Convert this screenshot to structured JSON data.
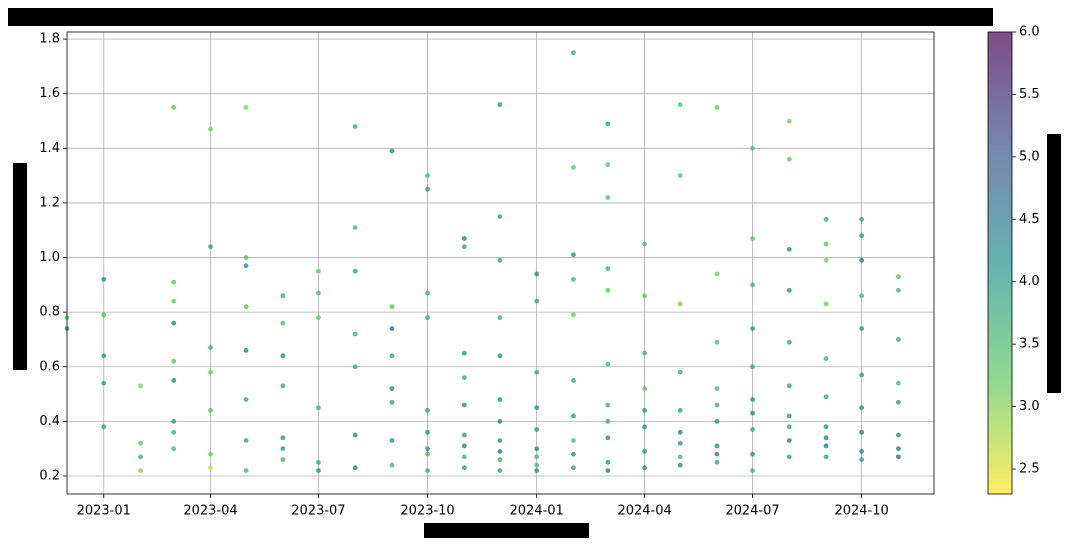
{
  "chart_data": {
    "type": "scatter",
    "x": [
      "2022-12",
      "2022-12",
      "2023-01",
      "2023-01",
      "2023-01",
      "2023-01",
      "2023-01",
      "2023-02",
      "2023-02",
      "2023-02",
      "2023-02",
      "2023-03",
      "2023-03",
      "2023-03",
      "2023-03",
      "2023-03",
      "2023-03",
      "2023-03",
      "2023-03",
      "2023-03",
      "2023-04",
      "2023-04",
      "2023-04",
      "2023-04",
      "2023-04",
      "2023-04",
      "2023-04",
      "2023-05",
      "2023-05",
      "2023-05",
      "2023-05",
      "2023-05",
      "2023-05",
      "2023-05",
      "2023-05",
      "2023-06",
      "2023-06",
      "2023-06",
      "2023-06",
      "2023-06",
      "2023-06",
      "2023-06",
      "2023-07",
      "2023-07",
      "2023-07",
      "2023-07",
      "2023-07",
      "2023-07",
      "2023-08",
      "2023-08",
      "2023-08",
      "2023-08",
      "2023-08",
      "2023-08",
      "2023-08",
      "2023-09",
      "2023-09",
      "2023-09",
      "2023-09",
      "2023-09",
      "2023-09",
      "2023-09",
      "2023-09",
      "2023-10",
      "2023-10",
      "2023-10",
      "2023-10",
      "2023-10",
      "2023-10",
      "2023-10",
      "2023-10",
      "2023-10",
      "2023-11",
      "2023-11",
      "2023-11",
      "2023-11",
      "2023-11",
      "2023-11",
      "2023-11",
      "2023-11",
      "2023-11",
      "2023-12",
      "2023-12",
      "2023-12",
      "2023-12",
      "2023-12",
      "2023-12",
      "2023-12",
      "2023-12",
      "2023-12",
      "2023-12",
      "2023-12",
      "2024-01",
      "2024-01",
      "2024-01",
      "2024-01",
      "2024-01",
      "2024-01",
      "2024-01",
      "2024-01",
      "2024-01",
      "2024-02",
      "2024-02",
      "2024-02",
      "2024-02",
      "2024-02",
      "2024-02",
      "2024-02",
      "2024-02",
      "2024-02",
      "2024-02",
      "2024-03",
      "2024-03",
      "2024-03",
      "2024-03",
      "2024-03",
      "2024-03",
      "2024-03",
      "2024-03",
      "2024-03",
      "2024-03",
      "2024-03",
      "2024-04",
      "2024-04",
      "2024-04",
      "2024-04",
      "2024-04",
      "2024-04",
      "2024-04",
      "2024-04",
      "2024-05",
      "2024-05",
      "2024-05",
      "2024-05",
      "2024-05",
      "2024-05",
      "2024-05",
      "2024-05",
      "2024-05",
      "2024-06",
      "2024-06",
      "2024-06",
      "2024-06",
      "2024-06",
      "2024-06",
      "2024-06",
      "2024-06",
      "2024-06",
      "2024-07",
      "2024-07",
      "2024-07",
      "2024-07",
      "2024-07",
      "2024-07",
      "2024-07",
      "2024-07",
      "2024-07",
      "2024-07",
      "2024-08",
      "2024-08",
      "2024-08",
      "2024-08",
      "2024-08",
      "2024-08",
      "2024-08",
      "2024-08",
      "2024-08",
      "2024-08",
      "2024-09",
      "2024-09",
      "2024-09",
      "2024-09",
      "2024-09",
      "2024-09",
      "2024-09",
      "2024-09",
      "2024-09",
      "2024-09",
      "2024-10",
      "2024-10",
      "2024-10",
      "2024-10",
      "2024-10",
      "2024-10",
      "2024-10",
      "2024-10",
      "2024-10",
      "2024-10",
      "2024-11",
      "2024-11",
      "2024-11",
      "2024-11",
      "2024-11",
      "2024-11",
      "2024-11",
      "2024-11"
    ],
    "values": [
      0.74,
      0.78,
      0.79,
      0.64,
      0.92,
      0.54,
      0.38,
      0.53,
      0.22,
      0.32,
      0.27,
      0.91,
      0.62,
      0.4,
      0.36,
      0.55,
      1.55,
      0.84,
      0.76,
      0.3,
      1.47,
      0.58,
      0.28,
      0.23,
      0.44,
      0.67,
      1.04,
      1.55,
      0.97,
      0.66,
      0.33,
      0.22,
      0.82,
      1.0,
      0.48,
      0.86,
      0.64,
      0.34,
      0.26,
      0.76,
      0.53,
      0.3,
      0.95,
      0.78,
      0.87,
      0.45,
      0.22,
      0.25,
      1.11,
      0.72,
      0.95,
      0.6,
      0.35,
      0.23,
      1.48,
      0.82,
      0.64,
      0.52,
      0.47,
      0.33,
      0.24,
      0.74,
      1.39,
      0.87,
      0.78,
      0.44,
      0.3,
      0.22,
      1.3,
      1.25,
      0.36,
      0.28,
      1.07,
      1.04,
      0.46,
      0.35,
      0.27,
      0.23,
      0.65,
      0.56,
      0.31,
      1.56,
      1.15,
      0.99,
      0.78,
      0.48,
      0.4,
      0.33,
      0.26,
      0.22,
      0.64,
      0.29,
      0.94,
      0.84,
      0.58,
      0.37,
      0.3,
      0.24,
      0.22,
      0.45,
      0.27,
      1.75,
      1.33,
      0.92,
      0.79,
      0.55,
      0.42,
      0.28,
      0.23,
      0.33,
      1.01,
      1.49,
      1.34,
      1.22,
      0.88,
      0.61,
      0.46,
      0.34,
      0.25,
      0.22,
      0.96,
      0.4,
      1.05,
      0.86,
      0.65,
      0.52,
      0.38,
      0.29,
      0.23,
      0.44,
      1.56,
      1.3,
      0.83,
      0.58,
      0.44,
      0.32,
      0.24,
      0.36,
      0.27,
      1.55,
      0.94,
      0.69,
      0.52,
      0.4,
      0.31,
      0.25,
      0.46,
      0.28,
      1.07,
      0.9,
      0.74,
      0.6,
      0.48,
      0.37,
      0.28,
      0.22,
      1.4,
      0.43,
      1.36,
      1.03,
      0.88,
      0.69,
      0.53,
      0.42,
      0.33,
      0.27,
      1.5,
      0.38,
      1.14,
      0.99,
      0.83,
      0.63,
      0.49,
      0.38,
      0.31,
      0.27,
      1.05,
      0.34,
      1.14,
      1.08,
      0.86,
      0.74,
      0.57,
      0.45,
      0.36,
      0.29,
      0.26,
      0.99,
      0.93,
      0.88,
      0.7,
      0.54,
      0.47,
      0.35,
      0.3,
      0.27
    ],
    "color_values": [
      4.1,
      3.3,
      3.4,
      4.2,
      4.3,
      4.0,
      3.9,
      3.1,
      3.0,
      3.3,
      3.6,
      3.3,
      3.3,
      4.0,
      3.7,
      4.2,
      3.2,
      3.2,
      4.4,
      3.5,
      3.1,
      3.2,
      3.3,
      2.6,
      3.3,
      3.7,
      4.0,
      3.1,
      4.1,
      4.3,
      3.8,
      3.5,
      3.4,
      3.4,
      3.8,
      3.8,
      4.2,
      4.1,
      3.6,
      3.4,
      3.7,
      4.0,
      3.2,
      3.3,
      3.4,
      3.7,
      4.1,
      3.8,
      3.4,
      3.6,
      3.9,
      3.8,
      4.2,
      4.3,
      3.7,
      3.3,
      3.9,
      4.4,
      3.8,
      4.1,
      3.6,
      4.6,
      4.3,
      3.7,
      3.8,
      3.9,
      4.0,
      3.7,
      3.5,
      4.0,
      4.2,
      3.5,
      4.4,
      3.8,
      4.2,
      4.0,
      3.6,
      4.0,
      4.1,
      3.8,
      4.3,
      4.0,
      3.8,
      3.9,
      3.7,
      4.1,
      4.3,
      4.0,
      3.7,
      3.8,
      4.2,
      4.5,
      4.2,
      3.9,
      3.8,
      4.0,
      4.3,
      3.6,
      4.1,
      4.1,
      3.7,
      3.7,
      3.3,
      3.6,
      3.2,
      3.8,
      4.0,
      4.2,
      3.9,
      3.5,
      4.2,
      3.9,
      3.3,
      3.4,
      3.2,
      3.5,
      3.6,
      4.1,
      4.0,
      4.4,
      3.6,
      3.8,
      3.5,
      3.3,
      3.7,
      3.3,
      4.2,
      4.0,
      4.3,
      4.1,
      3.3,
      3.3,
      3.1,
      3.7,
      3.9,
      4.0,
      4.2,
      4.3,
      3.6,
      3.2,
      3.1,
      3.4,
      3.5,
      4.0,
      4.2,
      3.8,
      3.6,
      4.4,
      3.3,
      3.6,
      4.0,
      3.8,
      4.2,
      3.9,
      4.1,
      3.6,
      3.4,
      4.3,
      3.3,
      4.1,
      4.1,
      3.7,
      3.9,
      4.0,
      4.4,
      3.9,
      3.1,
      3.8,
      3.7,
      3.1,
      3.2,
      3.6,
      3.8,
      4.1,
      4.5,
      3.9,
      3.3,
      4.3,
      3.8,
      4.0,
      3.6,
      4.1,
      3.9,
      4.2,
      4.6,
      4.3,
      4.0,
      4.6,
      3.3,
      3.6,
      3.8,
      3.5,
      3.9,
      4.2,
      4.4,
      4.7
    ],
    "colormap": "viridis_r",
    "xlim": [
      "2022-12",
      "2024-12"
    ],
    "xticks": [
      "2023-01",
      "2023-04",
      "2023-07",
      "2023-10",
      "2024-01",
      "2024-04",
      "2024-07",
      "2024-10"
    ],
    "ylim": [
      0.134,
      1.826
    ],
    "yticks": [
      0.2,
      0.4,
      0.6,
      0.8,
      {
        "value": 1,
        "label": "1.0"
      },
      1.2,
      1.4,
      1.6,
      1.8
    ],
    "clim": [
      2.3,
      6.0
    ],
    "cticks": [
      2.5,
      {
        "value": 3,
        "label": "3.0"
      },
      3.5,
      {
        "value": 4,
        "label": "4.0"
      },
      4.5,
      {
        "value": 5,
        "label": "5.0"
      },
      5.5,
      {
        "value": 6,
        "label": "6.0"
      }
    ],
    "grid": true
  }
}
